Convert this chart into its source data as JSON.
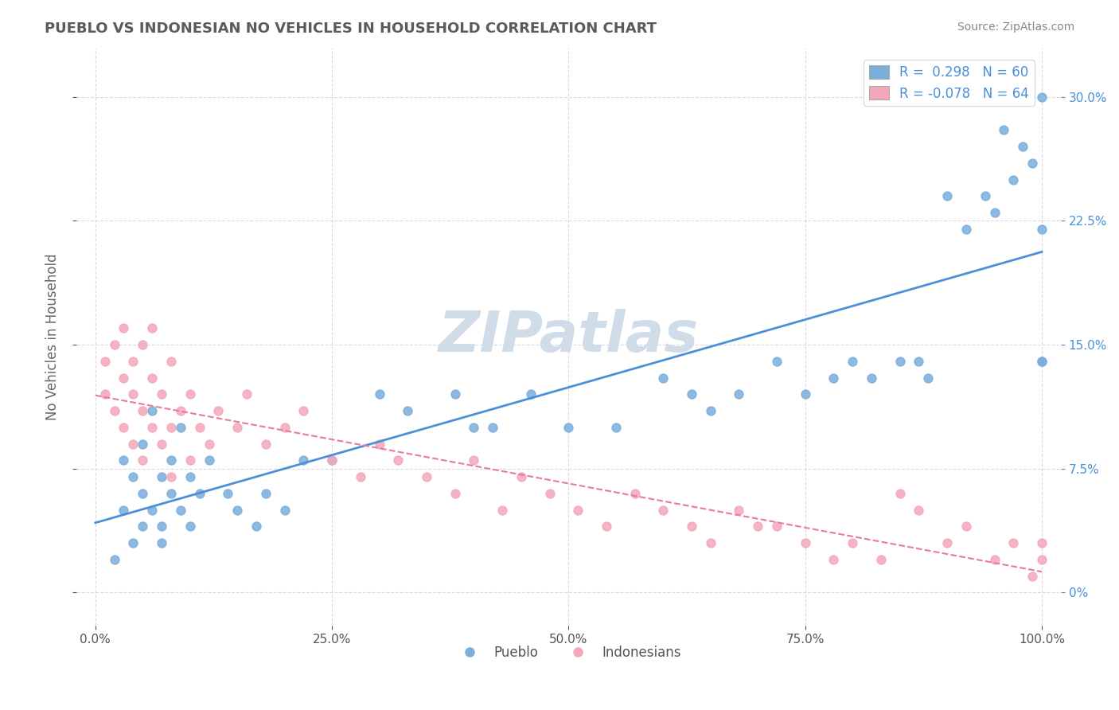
{
  "title": "PUEBLO VS INDONESIAN NO VEHICLES IN HOUSEHOLD CORRELATION CHART",
  "source": "Source: ZipAtlas.com",
  "xlabel": "",
  "ylabel": "No Vehicles in Household",
  "xlim": [
    0,
    100
  ],
  "ylim": [
    -2,
    33
  ],
  "xticks": [
    0,
    25,
    50,
    75,
    100
  ],
  "xticklabels": [
    "0.0%",
    "25.0%",
    "50.0%",
    "75.0%",
    "100.0%"
  ],
  "yticks": [
    0,
    7.5,
    15.0,
    22.5,
    30.0
  ],
  "yticklabels": [
    "0%",
    "7.5%",
    "15.0%",
    "22.5%",
    "30.0%"
  ],
  "legend_r1": "R =  0.298",
  "legend_n1": "N = 60",
  "legend_r2": "R = -0.078",
  "legend_n2": "N = 64",
  "blue_color": "#7aaedc",
  "pink_color": "#f4a7b9",
  "blue_line_color": "#4a90d9",
  "pink_line_color": "#e87a9a",
  "title_color": "#5b5b5b",
  "source_color": "#888888",
  "background_color": "#ffffff",
  "watermark_text": "ZIPatlas",
  "watermark_color": "#d0dce8",
  "pueblo_x": [
    2,
    3,
    3,
    4,
    4,
    5,
    5,
    5,
    6,
    6,
    7,
    7,
    7,
    8,
    8,
    9,
    9,
    10,
    10,
    11,
    12,
    14,
    15,
    17,
    18,
    20,
    22,
    25,
    30,
    33,
    38,
    40,
    42,
    46,
    50,
    55,
    60,
    63,
    65,
    68,
    72,
    75,
    78,
    80,
    82,
    85,
    87,
    88,
    90,
    92,
    94,
    95,
    96,
    97,
    98,
    99,
    100,
    100,
    100,
    100
  ],
  "pueblo_y": [
    2,
    5,
    8,
    3,
    7,
    4,
    6,
    9,
    5,
    11,
    4,
    7,
    3,
    6,
    8,
    5,
    10,
    4,
    7,
    6,
    8,
    6,
    5,
    4,
    6,
    5,
    8,
    8,
    12,
    11,
    12,
    10,
    10,
    12,
    10,
    10,
    13,
    12,
    11,
    12,
    14,
    12,
    13,
    14,
    13,
    14,
    14,
    13,
    24,
    22,
    24,
    23,
    28,
    25,
    27,
    26,
    14,
    22,
    14,
    30
  ],
  "indonesian_x": [
    1,
    1,
    2,
    2,
    3,
    3,
    3,
    4,
    4,
    4,
    5,
    5,
    5,
    6,
    6,
    6,
    7,
    7,
    8,
    8,
    8,
    9,
    10,
    10,
    11,
    12,
    13,
    15,
    16,
    18,
    20,
    22,
    25,
    28,
    30,
    32,
    35,
    38,
    40,
    43,
    45,
    48,
    51,
    54,
    57,
    60,
    63,
    65,
    68,
    70,
    72,
    75,
    78,
    80,
    83,
    85,
    87,
    90,
    92,
    95,
    97,
    99,
    100,
    100
  ],
  "indonesian_y": [
    12,
    14,
    11,
    15,
    13,
    16,
    10,
    14,
    12,
    9,
    15,
    11,
    8,
    13,
    10,
    16,
    12,
    9,
    14,
    10,
    7,
    11,
    12,
    8,
    10,
    9,
    11,
    10,
    12,
    9,
    10,
    11,
    8,
    7,
    9,
    8,
    7,
    6,
    8,
    5,
    7,
    6,
    5,
    4,
    6,
    5,
    4,
    3,
    5,
    4,
    4,
    3,
    2,
    3,
    2,
    6,
    5,
    3,
    4,
    2,
    3,
    1,
    2,
    3
  ]
}
